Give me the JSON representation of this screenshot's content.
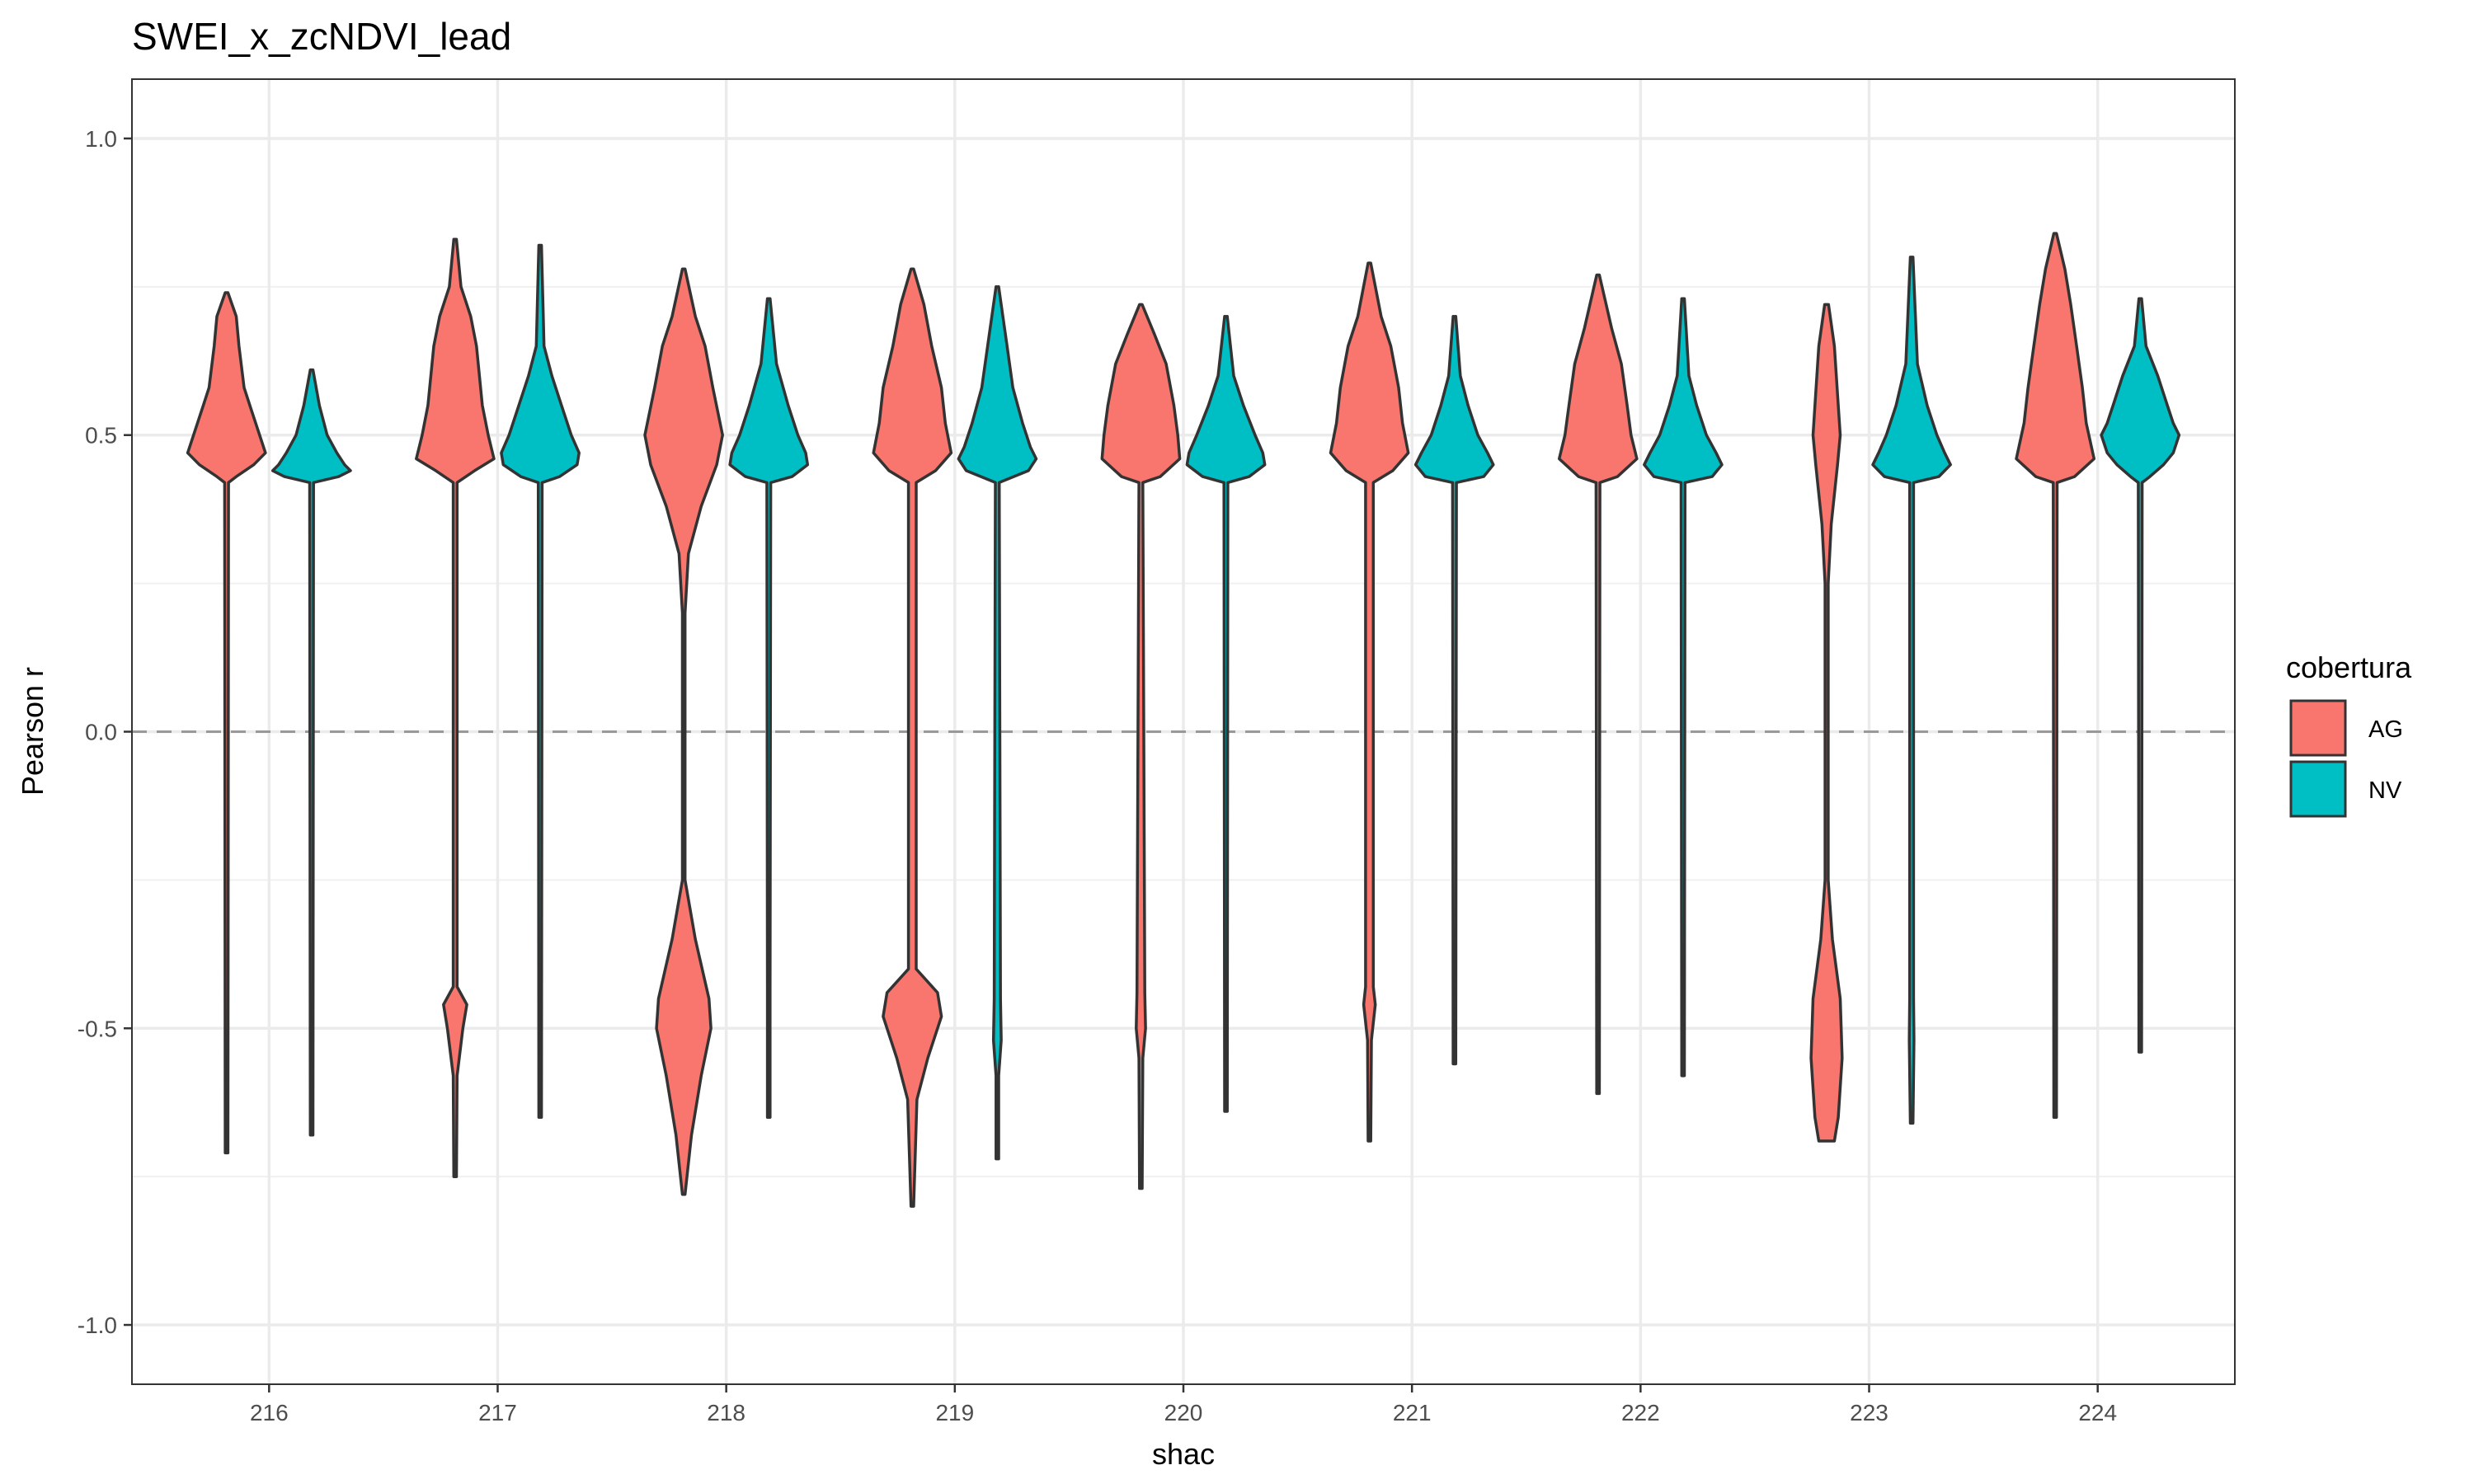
{
  "chart_data": {
    "type": "violin",
    "title": "SWEI_x_zcNDVI_lead",
    "xlabel": "shac",
    "ylabel": "Pearson r",
    "ylim": [
      -1.1,
      1.1
    ],
    "yticks": [
      "-1.0",
      "-0.5",
      "0.0",
      "0.5",
      "1.0"
    ],
    "ytick_values": [
      -1.0,
      -0.5,
      0.0,
      0.5,
      1.0
    ],
    "categories": [
      "216",
      "217",
      "218",
      "219",
      "220",
      "221",
      "222",
      "223",
      "224"
    ],
    "reference_line": {
      "y": 0.0,
      "style": "dashed",
      "color": "#999999"
    },
    "grid": true,
    "legend": {
      "title": "cobertura",
      "position": "right",
      "entries": [
        {
          "label": "AG",
          "color": "#F8766D"
        },
        {
          "label": "NV",
          "color": "#00BFC4"
        }
      ]
    },
    "series": [
      {
        "name": "AG",
        "color": "#F8766D",
        "violins": [
          {
            "min": -0.71,
            "max": 0.74,
            "shape": [
              [
                0.74,
                0
              ],
              [
                0.7,
                0.25
              ],
              [
                0.65,
                0.32
              ],
              [
                0.58,
                0.45
              ],
              [
                0.55,
                0.6
              ],
              [
                0.5,
                0.85
              ],
              [
                0.47,
                1.0
              ],
              [
                0.45,
                0.7
              ],
              [
                0.43,
                0.25
              ],
              [
                0.42,
                0.05
              ],
              [
                -0.71,
                0
              ]
            ]
          },
          {
            "min": -0.75,
            "max": 0.83,
            "shape": [
              [
                0.83,
                0
              ],
              [
                0.75,
                0.15
              ],
              [
                0.7,
                0.4
              ],
              [
                0.65,
                0.55
              ],
              [
                0.55,
                0.7
              ],
              [
                0.5,
                0.85
              ],
              [
                0.46,
                1.0
              ],
              [
                0.44,
                0.5
              ],
              [
                0.42,
                0.05
              ],
              [
                -0.43,
                0.05
              ],
              [
                -0.46,
                0.3
              ],
              [
                -0.5,
                0.2
              ],
              [
                -0.58,
                0.05
              ],
              [
                -0.75,
                0
              ]
            ]
          },
          {
            "min": -0.78,
            "max": 0.78,
            "shape": [
              [
                0.78,
                0
              ],
              [
                0.7,
                0.3
              ],
              [
                0.65,
                0.55
              ],
              [
                0.58,
                0.75
              ],
              [
                0.5,
                1.0
              ],
              [
                0.45,
                0.85
              ],
              [
                0.38,
                0.45
              ],
              [
                0.3,
                0.12
              ],
              [
                0.2,
                0.03
              ],
              [
                -0.25,
                0.03
              ],
              [
                -0.35,
                0.3
              ],
              [
                -0.45,
                0.65
              ],
              [
                -0.5,
                0.7
              ],
              [
                -0.58,
                0.45
              ],
              [
                -0.68,
                0.2
              ],
              [
                -0.78,
                0
              ]
            ]
          },
          {
            "min": -0.8,
            "max": 0.78,
            "shape": [
              [
                0.78,
                0
              ],
              [
                0.72,
                0.3
              ],
              [
                0.65,
                0.5
              ],
              [
                0.58,
                0.75
              ],
              [
                0.52,
                0.85
              ],
              [
                0.47,
                1.0
              ],
              [
                0.44,
                0.6
              ],
              [
                0.42,
                0.1
              ],
              [
                -0.4,
                0.1
              ],
              [
                -0.44,
                0.65
              ],
              [
                -0.48,
                0.75
              ],
              [
                -0.55,
                0.4
              ],
              [
                -0.62,
                0.12
              ],
              [
                -0.8,
                0
              ]
            ]
          },
          {
            "min": -0.77,
            "max": 0.72,
            "shape": [
              [
                0.72,
                0
              ],
              [
                0.67,
                0.35
              ],
              [
                0.62,
                0.65
              ],
              [
                0.55,
                0.85
              ],
              [
                0.5,
                0.95
              ],
              [
                0.46,
                1.0
              ],
              [
                0.43,
                0.5
              ],
              [
                0.42,
                0.05
              ],
              [
                -0.44,
                0.1
              ],
              [
                -0.5,
                0.12
              ],
              [
                -0.55,
                0.05
              ],
              [
                -0.77,
                0
              ]
            ]
          },
          {
            "min": -0.69,
            "max": 0.79,
            "shape": [
              [
                0.79,
                0
              ],
              [
                0.7,
                0.3
              ],
              [
                0.65,
                0.55
              ],
              [
                0.58,
                0.75
              ],
              [
                0.52,
                0.85
              ],
              [
                0.47,
                1.0
              ],
              [
                0.44,
                0.6
              ],
              [
                0.42,
                0.1
              ],
              [
                -0.43,
                0.1
              ],
              [
                -0.46,
                0.15
              ],
              [
                -0.52,
                0.05
              ],
              [
                -0.69,
                0
              ]
            ]
          },
          {
            "min": -0.61,
            "max": 0.77,
            "shape": [
              [
                0.77,
                0
              ],
              [
                0.68,
                0.35
              ],
              [
                0.62,
                0.6
              ],
              [
                0.55,
                0.75
              ],
              [
                0.5,
                0.85
              ],
              [
                0.46,
                1.0
              ],
              [
                0.43,
                0.5
              ],
              [
                0.42,
                0.05
              ],
              [
                -0.61,
                0
              ]
            ]
          },
          {
            "min": -0.69,
            "max": 0.72,
            "shape": [
              [
                0.72,
                0.05
              ],
              [
                0.65,
                0.2
              ],
              [
                0.55,
                0.3
              ],
              [
                0.5,
                0.35
              ],
              [
                0.45,
                0.28
              ],
              [
                0.35,
                0.12
              ],
              [
                0.25,
                0.04
              ],
              [
                -0.25,
                0.04
              ],
              [
                -0.35,
                0.15
              ],
              [
                -0.45,
                0.35
              ],
              [
                -0.55,
                0.4
              ],
              [
                -0.65,
                0.3
              ],
              [
                -0.69,
                0.2
              ],
              [
                -0.69,
                0
              ]
            ]
          },
          {
            "min": -0.65,
            "max": 0.84,
            "shape": [
              [
                0.84,
                0
              ],
              [
                0.78,
                0.25
              ],
              [
                0.72,
                0.4
              ],
              [
                0.65,
                0.55
              ],
              [
                0.58,
                0.7
              ],
              [
                0.52,
                0.8
              ],
              [
                0.46,
                1.0
              ],
              [
                0.43,
                0.5
              ],
              [
                0.42,
                0.05
              ],
              [
                -0.65,
                0
              ]
            ]
          }
        ]
      },
      {
        "name": "NV",
        "color": "#00BFC4",
        "violins": [
          {
            "min": -0.68,
            "max": 0.61,
            "shape": [
              [
                0.61,
                0
              ],
              [
                0.55,
                0.2
              ],
              [
                0.5,
                0.4
              ],
              [
                0.47,
                0.65
              ],
              [
                0.45,
                0.85
              ],
              [
                0.44,
                1.0
              ],
              [
                0.43,
                0.7
              ],
              [
                0.42,
                0.05
              ],
              [
                -0.68,
                0
              ]
            ]
          },
          {
            "min": -0.65,
            "max": 0.82,
            "shape": [
              [
                0.82,
                0
              ],
              [
                0.65,
                0.1
              ],
              [
                0.6,
                0.3
              ],
              [
                0.55,
                0.55
              ],
              [
                0.5,
                0.8
              ],
              [
                0.47,
                1.0
              ],
              [
                0.45,
                0.95
              ],
              [
                0.43,
                0.5
              ],
              [
                0.42,
                0.05
              ],
              [
                -0.65,
                0
              ]
            ]
          },
          {
            "min": -0.65,
            "max": 0.73,
            "shape": [
              [
                0.73,
                0
              ],
              [
                0.62,
                0.2
              ],
              [
                0.55,
                0.5
              ],
              [
                0.5,
                0.75
              ],
              [
                0.47,
                0.95
              ],
              [
                0.45,
                1.0
              ],
              [
                0.43,
                0.6
              ],
              [
                0.42,
                0.05
              ],
              [
                -0.44,
                0.03
              ],
              [
                -0.65,
                0
              ]
            ]
          },
          {
            "min": -0.72,
            "max": 0.75,
            "shape": [
              [
                0.75,
                0
              ],
              [
                0.65,
                0.25
              ],
              [
                0.58,
                0.4
              ],
              [
                0.52,
                0.65
              ],
              [
                0.48,
                0.85
              ],
              [
                0.46,
                1.0
              ],
              [
                0.44,
                0.8
              ],
              [
                0.42,
                0.05
              ],
              [
                -0.45,
                0.08
              ],
              [
                -0.52,
                0.1
              ],
              [
                -0.58,
                0.03
              ],
              [
                -0.72,
                0
              ]
            ]
          },
          {
            "min": -0.64,
            "max": 0.7,
            "shape": [
              [
                0.7,
                0
              ],
              [
                0.6,
                0.2
              ],
              [
                0.55,
                0.45
              ],
              [
                0.5,
                0.75
              ],
              [
                0.47,
                0.95
              ],
              [
                0.45,
                1.0
              ],
              [
                0.43,
                0.6
              ],
              [
                0.42,
                0.05
              ],
              [
                -0.64,
                0
              ]
            ]
          },
          {
            "min": -0.56,
            "max": 0.7,
            "shape": [
              [
                0.7,
                0
              ],
              [
                0.6,
                0.15
              ],
              [
                0.55,
                0.35
              ],
              [
                0.5,
                0.6
              ],
              [
                0.47,
                0.85
              ],
              [
                0.45,
                1.0
              ],
              [
                0.43,
                0.75
              ],
              [
                0.42,
                0.05
              ],
              [
                -0.56,
                0
              ]
            ]
          },
          {
            "min": -0.58,
            "max": 0.73,
            "shape": [
              [
                0.73,
                0
              ],
              [
                0.6,
                0.15
              ],
              [
                0.55,
                0.35
              ],
              [
                0.5,
                0.6
              ],
              [
                0.47,
                0.85
              ],
              [
                0.45,
                1.0
              ],
              [
                0.43,
                0.75
              ],
              [
                0.42,
                0.05
              ],
              [
                -0.58,
                0
              ]
            ]
          },
          {
            "min": -0.66,
            "max": 0.8,
            "shape": [
              [
                0.8,
                0
              ],
              [
                0.62,
                0.15
              ],
              [
                0.55,
                0.4
              ],
              [
                0.5,
                0.65
              ],
              [
                0.47,
                0.85
              ],
              [
                0.45,
                1.0
              ],
              [
                0.43,
                0.7
              ],
              [
                0.42,
                0.05
              ],
              [
                -0.45,
                0.05
              ],
              [
                -0.52,
                0.06
              ],
              [
                -0.66,
                0
              ]
            ]
          },
          {
            "min": -0.54,
            "max": 0.73,
            "shape": [
              [
                0.73,
                0
              ],
              [
                0.65,
                0.15
              ],
              [
                0.6,
                0.45
              ],
              [
                0.55,
                0.7
              ],
              [
                0.52,
                0.85
              ],
              [
                0.5,
                1.0
              ],
              [
                0.47,
                0.85
              ],
              [
                0.45,
                0.6
              ],
              [
                0.43,
                0.25
              ],
              [
                0.42,
                0.05
              ],
              [
                -0.54,
                0
              ]
            ]
          }
        ]
      }
    ]
  }
}
